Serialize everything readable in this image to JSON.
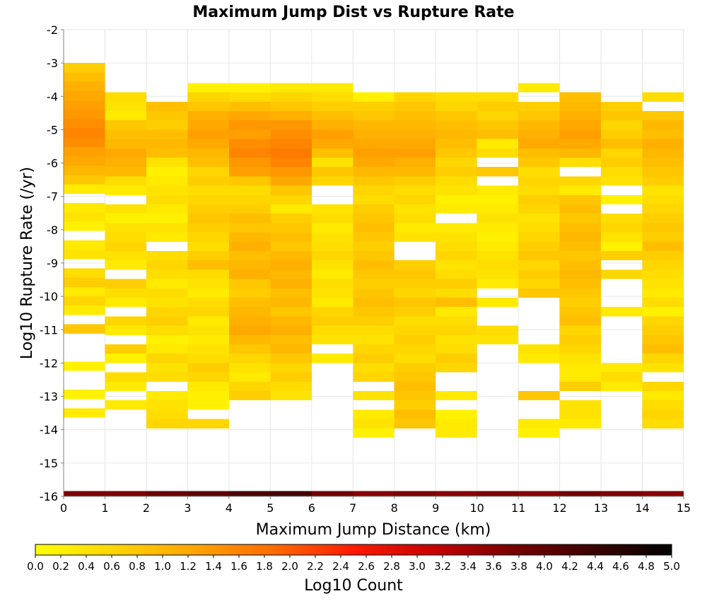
{
  "chart_data": {
    "type": "heatmap",
    "title": "Maximum Jump Dist vs Rupture Rate",
    "xlabel": "Maximum Jump Distance (km)",
    "ylabel": "Log10 Rupture Rate (/yr)",
    "xlim": [
      0,
      15
    ],
    "ylim": [
      -16,
      -2
    ],
    "xticks": [
      "0",
      "1",
      "2",
      "3",
      "4",
      "5",
      "6",
      "7",
      "8",
      "9",
      "10",
      "11",
      "12",
      "13",
      "14",
      "15"
    ],
    "yticks": [
      "-2",
      "-3",
      "-4",
      "-5",
      "-6",
      "-7",
      "-8",
      "-9",
      "-10",
      "-11",
      "-12",
      "-13",
      "-14",
      "-15",
      "-16"
    ],
    "x_bin_width": 1,
    "y_bin_height": 0.28,
    "grid": true,
    "colorbar": {
      "label": "Log10 Count",
      "min": 0.0,
      "max": 5.0,
      "ticks": [
        "0.0",
        "0.2",
        "0.4",
        "0.6",
        "0.8",
        "1.0",
        "1.2",
        "1.4",
        "1.6",
        "1.8",
        "2.0",
        "2.2",
        "2.4",
        "2.6",
        "2.8",
        "3.0",
        "3.2",
        "3.4",
        "3.6",
        "3.8",
        "4.0",
        "4.2",
        "4.4",
        "4.6",
        "4.8",
        "5.0"
      ],
      "colors": [
        "#ffff00",
        "#ffd400",
        "#ffa500",
        "#ff6a00",
        "#ff1a00",
        "#c80000",
        "#780000",
        "#3c0000",
        "#000000"
      ]
    },
    "columns": [
      {
        "x": 0,
        "y_top": -3.0,
        "values": [
          0.7,
          0.9,
          1.1,
          1.2,
          1.3,
          1.4,
          1.5,
          1.6,
          1.5,
          1.3,
          1.2,
          1.0,
          0.8,
          0.3,
          null,
          0.3,
          0.4,
          0.2,
          null,
          0.3,
          0.4,
          null,
          0.5,
          0.7,
          0.3,
          0.6,
          0.3,
          null,
          0.8,
          null,
          null,
          null,
          0.2,
          null,
          null,
          0.2,
          null,
          0.3,
          null,
          null
        ]
      },
      {
        "x": 1,
        "y_top": -3.88,
        "values": [
          0.5,
          0.4,
          0.3,
          0.8,
          0.9,
          1.0,
          1.2,
          1.1,
          1.0,
          0.5,
          0.3,
          null,
          0.4,
          0.2,
          0.4,
          0.5,
          0.6,
          0.4,
          0.3,
          null,
          0.7,
          0.5,
          0.3,
          null,
          0.6,
          0.3,
          null,
          0.7,
          0.2,
          null,
          0.5,
          0.3,
          null,
          0.3,
          null,
          null
        ]
      },
      {
        "x": 2,
        "y_top": -4.16,
        "values": [
          0.9,
          0.8,
          0.7,
          0.9,
          1.0,
          0.9,
          0.4,
          0.2,
          0.3,
          0.4,
          0.5,
          0.3,
          0.2,
          0.4,
          0.3,
          null,
          0.5,
          0.6,
          0.5,
          0.3,
          0.5,
          0.4,
          0.6,
          0.7,
          0.5,
          0.2,
          0.3,
          0.6,
          0.4,
          0.5,
          null,
          0.3,
          0.4,
          0.5,
          0.6
        ]
      },
      {
        "x": 3,
        "y_top": -3.6,
        "values": [
          0.2,
          0.6,
          0.8,
          1.1,
          1.2,
          1.3,
          1.2,
          1.0,
          0.9,
          0.6,
          0.7,
          0.5,
          0.6,
          0.7,
          0.8,
          0.7,
          0.6,
          0.5,
          0.7,
          0.9,
          0.5,
          0.4,
          0.3,
          0.5,
          0.6,
          0.3,
          0.4,
          0.3,
          0.4,
          0.5,
          0.7,
          0.6,
          0.3,
          0.2,
          0.2,
          null,
          0.6
        ]
      },
      {
        "x": 4,
        "y_top": -3.6,
        "values": [
          0.2,
          0.5,
          0.9,
          1.2,
          1.4,
          1.3,
          1.5,
          1.6,
          1.4,
          1.3,
          0.8,
          0.5,
          0.6,
          0.7,
          0.9,
          0.8,
          1.0,
          1.1,
          0.9,
          1.0,
          1.1,
          0.8,
          0.7,
          0.9,
          1.0,
          1.1,
          1.2,
          1.0,
          0.8,
          0.6,
          0.4,
          0.3,
          0.6,
          0.7
        ]
      },
      {
        "x": 5,
        "y_top": -3.6,
        "values": [
          0.3,
          0.6,
          0.8,
          1.1,
          1.4,
          1.5,
          1.6,
          1.7,
          1.6,
          1.4,
          1.2,
          0.8,
          0.6,
          0.3,
          0.7,
          0.8,
          0.9,
          0.8,
          1.0,
          1.1,
          1.0,
          1.1,
          0.9,
          1.0,
          0.8,
          1.0,
          1.1,
          0.9,
          1.0,
          0.8,
          0.6,
          0.7,
          0.5,
          0.4
        ]
      },
      {
        "x": 6,
        "y_top": -3.6,
        "values": [
          0.3,
          0.5,
          0.7,
          0.9,
          1.1,
          1.3,
          1.2,
          0.9,
          0.4,
          0.8,
          0.6,
          null,
          null,
          0.4,
          0.5,
          0.3,
          0.4,
          0.5,
          0.6,
          0.4,
          0.3,
          0.5,
          0.4,
          0.3,
          0.6,
          0.7,
          0.5,
          0.4,
          null,
          0.3,
          null,
          null,
          null,
          null,
          null,
          null,
          null
        ]
      },
      {
        "x": 7,
        "y_top": -3.88,
        "values": [
          0.2,
          0.7,
          0.8,
          1.0,
          1.1,
          1.2,
          1.3,
          1.2,
          1.0,
          0.8,
          0.6,
          0.5,
          0.7,
          0.8,
          0.9,
          0.8,
          0.7,
          0.8,
          0.9,
          0.8,
          0.7,
          0.8,
          0.9,
          0.8,
          0.7,
          0.5,
          0.4,
          0.6,
          0.7,
          0.5,
          0.6,
          null,
          0.4,
          null,
          0.3,
          0.4,
          0.2
        ]
      },
      {
        "x": 8,
        "y_top": -3.88,
        "values": [
          0.6,
          0.8,
          0.9,
          1.0,
          1.1,
          1.2,
          1.3,
          1.1,
          1.0,
          0.7,
          0.5,
          0.6,
          0.4,
          0.5,
          0.3,
          0.4,
          null,
          null,
          0.7,
          0.8,
          0.7,
          0.6,
          0.8,
          0.7,
          0.5,
          0.6,
          0.7,
          0.6,
          0.5,
          0.7,
          0.8,
          0.9,
          0.8,
          0.7,
          0.9,
          0.8
        ]
      },
      {
        "x": 9,
        "y_top": -3.88,
        "values": [
          0.5,
          0.6,
          0.8,
          0.9,
          1.0,
          0.9,
          0.8,
          0.6,
          0.7,
          0.5,
          0.4,
          0.2,
          0.3,
          null,
          0.3,
          0.4,
          0.5,
          0.6,
          0.4,
          0.5,
          0.7,
          0.5,
          0.9,
          0.3,
          0.5,
          0.6,
          0.4,
          0.5,
          0.7,
          0.6,
          null,
          null,
          0.3,
          null,
          0.2,
          0.3,
          0.3
        ]
      },
      {
        "x": 10,
        "y_top": -3.88,
        "values": [
          0.5,
          0.7,
          0.6,
          0.8,
          0.9,
          0.3,
          0.5,
          null,
          0.8,
          null,
          0.3,
          0.2,
          0.3,
          0.4,
          0.3,
          0.2,
          0.3,
          0.4,
          0.5,
          0.4,
          0.3,
          null,
          0.3,
          null,
          null,
          0.5,
          0.4,
          null,
          null,
          null,
          null,
          null,
          null,
          null,
          null,
          null
        ]
      },
      {
        "x": 11,
        "y_top": -3.6,
        "values": [
          0.3,
          null,
          0.7,
          0.8,
          1.0,
          1.1,
          1.2,
          0.9,
          0.8,
          0.5,
          0.6,
          0.5,
          0.7,
          0.6,
          0.4,
          0.5,
          0.6,
          0.7,
          0.8,
          0.6,
          0.7,
          0.6,
          0.8,
          null,
          null,
          null,
          null,
          null,
          0.4,
          0.3,
          null,
          null,
          null,
          0.8,
          null,
          null,
          0.3,
          0.2
        ]
      },
      {
        "x": 12,
        "y_top": -3.88,
        "values": [
          0.9,
          1.0,
          1.1,
          1.2,
          1.3,
          1.2,
          1.0,
          0.5,
          null,
          0.6,
          0.3,
          0.8,
          0.9,
          0.8,
          0.9,
          1.0,
          0.9,
          0.8,
          0.9,
          1.0,
          0.9,
          0.8,
          0.7,
          0.8,
          0.9,
          0.6,
          0.7,
          0.6,
          0.4,
          0.3,
          0.3,
          0.7,
          null,
          0.4,
          0.4,
          0.3
        ]
      },
      {
        "x": 13,
        "y_top": -4.16,
        "values": [
          0.7,
          0.8,
          0.6,
          0.7,
          0.9,
          0.6,
          0.7,
          0.5,
          0.4,
          null,
          0.2,
          null,
          0.5,
          0.6,
          0.4,
          0.2,
          0.7,
          null,
          0.6,
          null,
          null,
          null,
          0.3,
          null,
          null,
          null,
          null,
          null,
          0.3,
          0.5,
          0.3,
          null,
          null,
          null,
          null,
          null,
          null
        ]
      },
      {
        "x": 14,
        "y_top": -3.88,
        "values": [
          0.5,
          null,
          0.8,
          1.0,
          0.9,
          1.1,
          1.0,
          0.9,
          0.8,
          0.7,
          0.4,
          0.5,
          0.6,
          0.7,
          0.8,
          0.7,
          0.9,
          0.7,
          0.6,
          0.5,
          0.4,
          0.3,
          0.5,
          0.2,
          0.6,
          0.7,
          0.8,
          0.9,
          0.6,
          0.4,
          null,
          0.6,
          0.3,
          0.5,
          0.6,
          0.5
        ]
      }
    ],
    "bottom_row": {
      "y": -16.0,
      "values": [
        3.7,
        3.7,
        3.9,
        4.0,
        4.2,
        4.3,
        3.8,
        3.6,
        3.7,
        3.6,
        3.7,
        3.6,
        3.8,
        3.7,
        3.6
      ]
    }
  }
}
